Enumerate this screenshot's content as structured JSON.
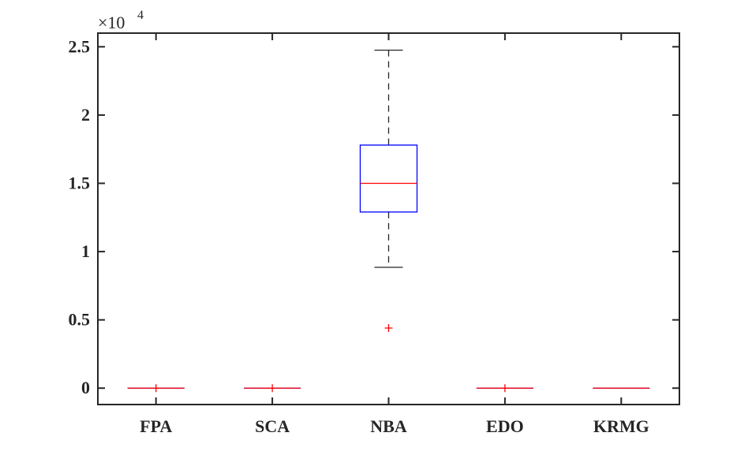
{
  "chart_data": {
    "type": "boxplot",
    "title": "",
    "xlabel": "",
    "ylabel": "",
    "y_exponent": "×10",
    "y_exponent_power": "4",
    "ylim": [
      -0.12,
      2.6
    ],
    "y_ticks": [
      0,
      0.5,
      1,
      1.5,
      2,
      2.5
    ],
    "y_tick_labels": [
      "0",
      "0.5",
      "1",
      "1.5",
      "2",
      "2.5"
    ],
    "categories": [
      "FPA",
      "SCA",
      "NBA",
      "EDO",
      "KRMG"
    ],
    "boxes": [
      {
        "category": "FPA",
        "whisker_low": 0,
        "q1": 0,
        "median": 0,
        "q3": 0,
        "whisker_high": 0,
        "outliers": [
          0
        ]
      },
      {
        "category": "SCA",
        "whisker_low": 0,
        "q1": 0,
        "median": 0,
        "q3": 0,
        "whisker_high": 0,
        "outliers": [
          0
        ]
      },
      {
        "category": "NBA",
        "whisker_low": 0.885,
        "q1": 1.29,
        "median": 1.5,
        "q3": 1.78,
        "whisker_high": 2.475,
        "outliers": [
          0.44
        ]
      },
      {
        "category": "EDO",
        "whisker_low": 0,
        "q1": 0,
        "median": 0,
        "q3": 0,
        "whisker_high": 0,
        "outliers": [
          0
        ]
      },
      {
        "category": "KRMG",
        "whisker_low": 0,
        "q1": 0,
        "median": 0,
        "q3": 0,
        "whisker_high": 0,
        "outliers": []
      }
    ],
    "colors": {
      "box": "#0000ff",
      "median": "#ff0000",
      "whisker": "#262626",
      "outlier": "#ff0000",
      "axis": "#262626"
    },
    "grid": false,
    "legend": "none",
    "box_style": "box",
    "outlier_marker": "+"
  }
}
